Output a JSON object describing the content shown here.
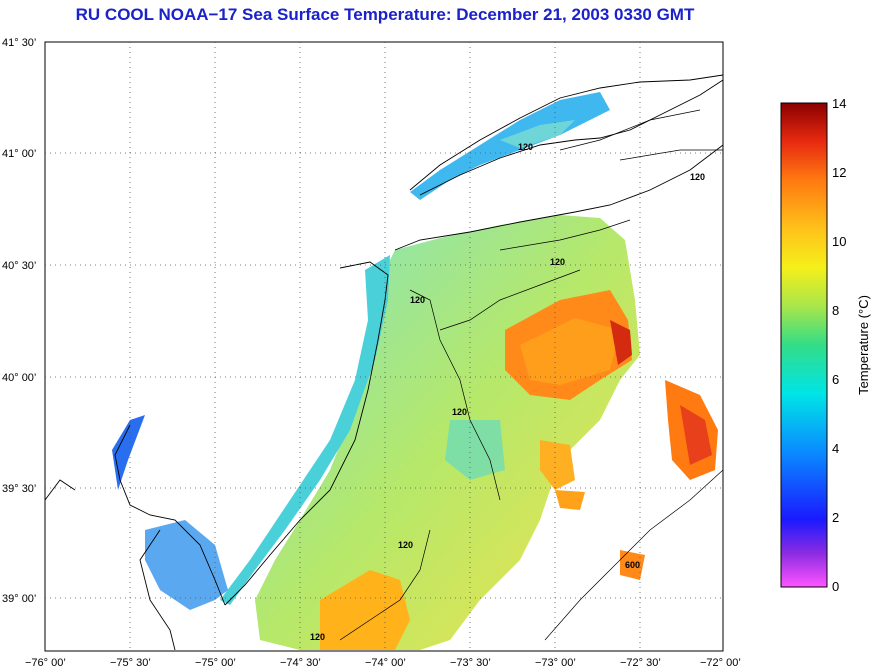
{
  "title": "RU COOL  NOAA−17  Sea Surface Temperature:  December 21, 2003 0330 GMT",
  "map": {
    "lat_labels": [
      "41° 30’",
      "41° 00’",
      "40° 30’",
      "40° 00’",
      "39° 30’",
      "39° 00’"
    ],
    "lon_labels": [
      "−76° 00’",
      "−75° 30’",
      "−75° 00’",
      "−74° 30’",
      "−74° 00’",
      "−73° 30’",
      "−73° 00’",
      "−72° 30’",
      "−72° 00’"
    ],
    "contour_labels": [
      "120",
      "120",
      "120",
      "120",
      "120",
      "120",
      "120",
      "600"
    ],
    "grid": "dotted"
  },
  "colorbar": {
    "label": "Temperature (°C)",
    "ticks": [
      "14",
      "12",
      "10",
      "8",
      "6",
      "4",
      "2",
      "0"
    ],
    "range": [
      0,
      14
    ],
    "colors": [
      "#ff55ff",
      "#8b2be2",
      "#1a1aff",
      "#0a8cff",
      "#00e5e5",
      "#33dd88",
      "#a8e64a",
      "#f5f01a",
      "#ffc21a",
      "#ff7a10",
      "#e82a10",
      "#8b0000"
    ]
  }
}
